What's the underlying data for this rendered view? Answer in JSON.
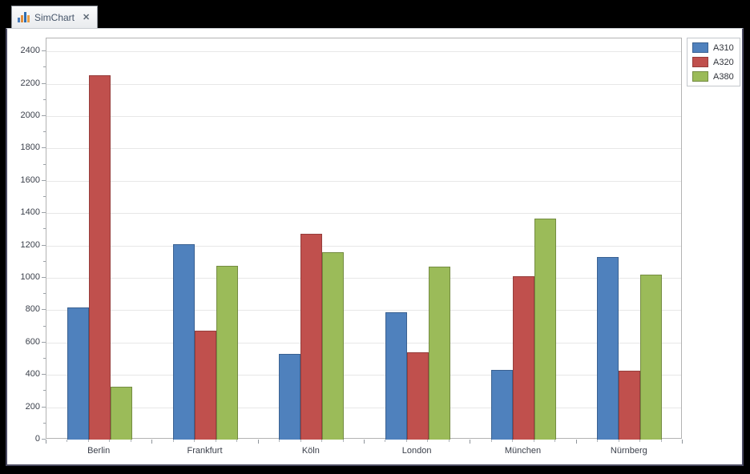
{
  "window": {
    "tab": {
      "title": "SimChart",
      "close_glyph": "✕",
      "icon": "bar-chart-icon"
    },
    "frame_color": "#4a4a61",
    "background_color": "#000000"
  },
  "chart_data": {
    "type": "bar",
    "title": "",
    "xlabel": "",
    "ylabel": "",
    "categories": [
      "Berlin",
      "Frankfurt",
      "Köln",
      "London",
      "München",
      "Nürnberg"
    ],
    "series": [
      {
        "name": "A310",
        "color": "#4f81bd",
        "border_color": "#3a6191",
        "values": [
          815,
          1210,
          530,
          785,
          430,
          1130
        ]
      },
      {
        "name": "A320",
        "color": "#c0504d",
        "border_color": "#963d3b",
        "values": [
          2250,
          675,
          1270,
          540,
          1010,
          425
        ]
      },
      {
        "name": "A380",
        "color": "#9bbb59",
        "border_color": "#748c42",
        "values": [
          325,
          1075,
          1160,
          1070,
          1365,
          1020
        ]
      }
    ],
    "ylim": [
      0,
      2400
    ],
    "y_major_step": 200,
    "y_minor_step": 100,
    "y_render_max": 2480,
    "y_tick_labels": [
      "0",
      "200",
      "400",
      "600",
      "800",
      "1000",
      "1200",
      "1400",
      "1600",
      "1800",
      "2000",
      "2200",
      "2400"
    ],
    "grid": true,
    "legend_position": "top-right",
    "gridline_color": "#e7e7e7",
    "plot_border_color": "#b3b3b3",
    "label_color": "#3a3f4a"
  }
}
